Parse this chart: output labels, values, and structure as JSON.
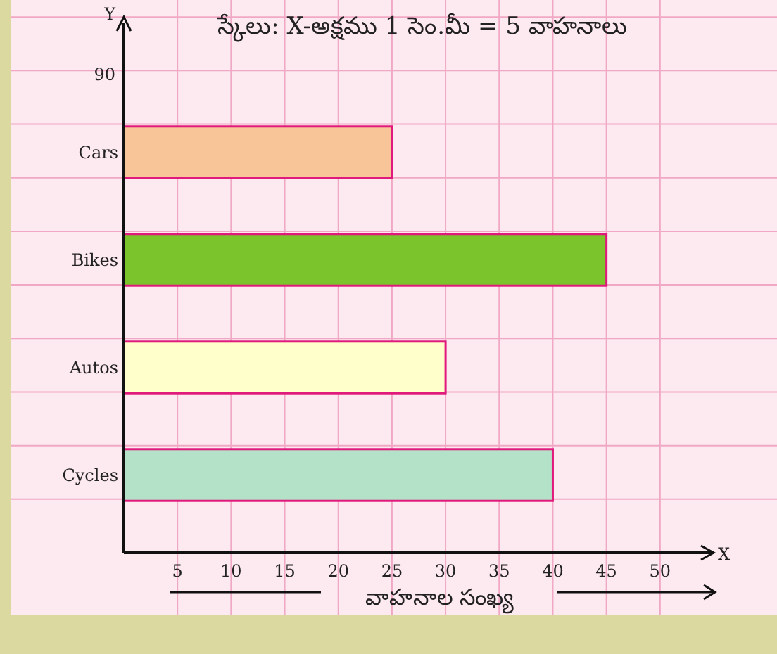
{
  "chart_data": {
    "type": "bar",
    "orientation": "horizontal",
    "title": "స్కేలు: X-అక్షము 1 సెం.మీ = 5 వాహనాలు",
    "xlabel": "వాహనాల సంఖ్య",
    "categories": [
      "Cars",
      "Bikes",
      "Autos",
      "Cycles"
    ],
    "values": [
      25,
      45,
      30,
      40
    ],
    "colors": [
      "#f7c597",
      "#7cc42c",
      "#ffffcc",
      "#b4e2c8"
    ],
    "xlim": [
      0,
      55
    ],
    "xticks": [
      5,
      10,
      15,
      20,
      25,
      30,
      35,
      40,
      45,
      50
    ],
    "grid": true,
    "annotations": [
      "90",
      "X",
      "Y"
    ]
  }
}
